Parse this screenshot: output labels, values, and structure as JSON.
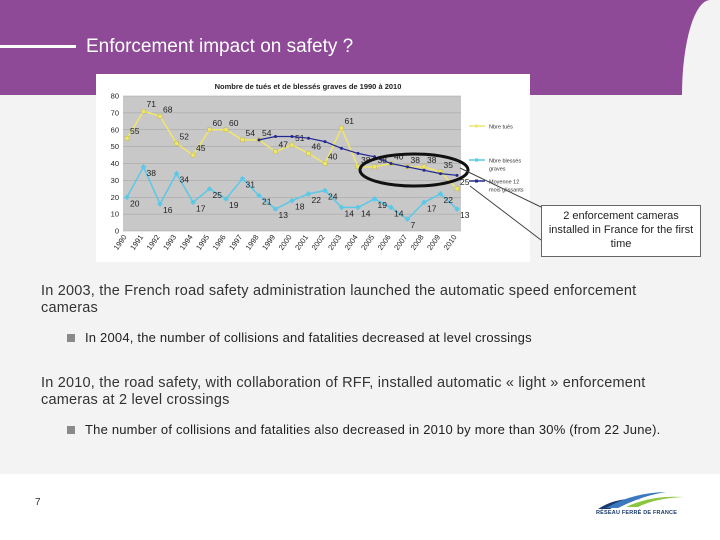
{
  "title": "Enforcement impact on safety ?",
  "callout": "2 enforcement cameras installed in France for the first time",
  "para1": "In 2003, the French road safety administration launched the automatic speed enforcement cameras",
  "bullet1": "In 2004, the number of collisions and fatalities decreased at level crossings",
  "para2": "In 2010, the road safety, with collaboration of RFF, installed automatic « light » enforcement cameras at 2 level crossings",
  "bullet2": "The number of collisions and fatalities also decreased in 2010 by more than 30% (from 22 June).",
  "page_number": "7",
  "logo_text": "RÉSEAU FERRÉ DE FRANCE",
  "colors": {
    "accent": "#8e4a97",
    "series1": "#f0e66a",
    "series2": "#5bc8e8",
    "series3": "#23288f"
  },
  "chart_data": {
    "type": "line",
    "title": "Nombre de tués et de blessés graves de 1990 à 2010",
    "xlabel": "",
    "ylabel": "",
    "x": [
      "1990",
      "1991",
      "1992",
      "1993",
      "1994",
      "1995",
      "1996",
      "1997",
      "1998",
      "1999",
      "2000",
      "2001",
      "2002",
      "2003",
      "2004",
      "2005",
      "2006",
      "2007",
      "2008",
      "2009",
      "2010"
    ],
    "ylim": [
      0,
      80
    ],
    "yticks": [
      0,
      10,
      20,
      30,
      40,
      50,
      60,
      70,
      80
    ],
    "grid": true,
    "legend": "right",
    "series": [
      {
        "name": "Nbre tués",
        "color": "#f0e66a",
        "values": [
          55,
          71,
          68,
          52,
          45,
          60,
          60,
          54,
          54,
          47,
          51,
          46,
          40,
          61,
          38,
          38,
          40,
          38,
          38,
          35,
          25
        ],
        "labels": [
          "55",
          "71",
          "68",
          "52",
          "45",
          "60",
          "60",
          "54",
          "54",
          "47",
          "51",
          "46",
          "40",
          "61",
          "38",
          "38",
          "40",
          "38",
          "38",
          "35",
          "25"
        ]
      },
      {
        "name": "Nbre blessés graves",
        "color": "#5bc8e8",
        "values": [
          20,
          38,
          16,
          34,
          17,
          25,
          19,
          31,
          21,
          13,
          18,
          22,
          24,
          14,
          14,
          19,
          14,
          7,
          17,
          22,
          13
        ],
        "labels": [
          "20",
          "38",
          "16",
          "34",
          "17",
          "25",
          "19",
          "31",
          "21",
          "13",
          "18",
          "22",
          "24",
          "14",
          "14",
          "19",
          "14",
          "7",
          "17",
          "22",
          "13"
        ]
      },
      {
        "name": "Moyenne 12 mois glissants",
        "color": "#23288f",
        "values": [
          null,
          null,
          null,
          null,
          null,
          null,
          null,
          null,
          54,
          56,
          56,
          55,
          53,
          49,
          46,
          44,
          40,
          38,
          36,
          34,
          33
        ]
      }
    ]
  }
}
